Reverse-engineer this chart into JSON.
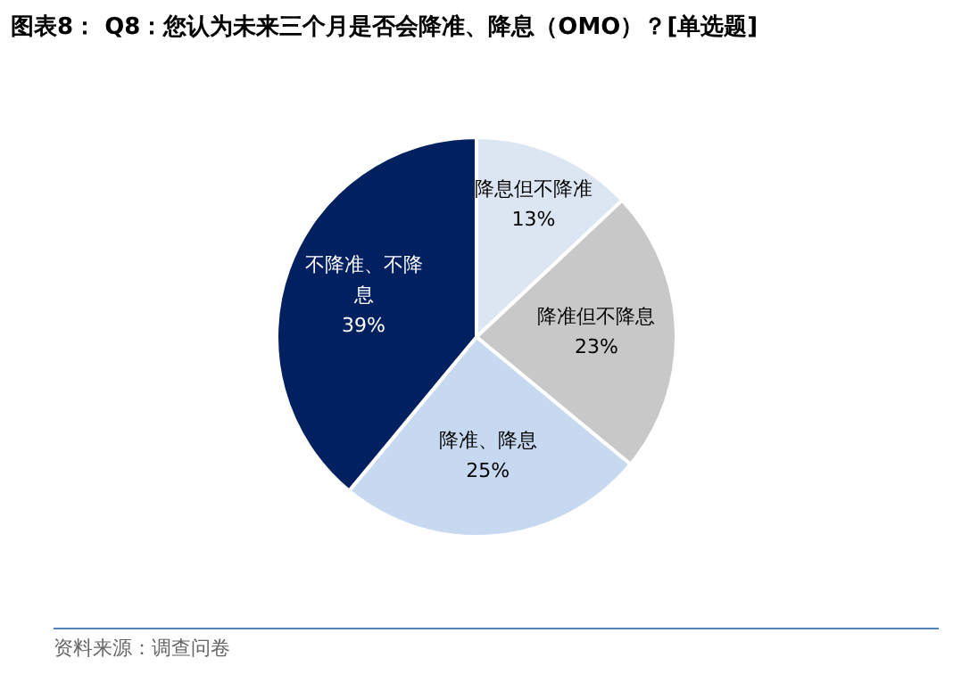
{
  "chart_data": {
    "type": "pie",
    "title": "图表8： Q8：您认为未来三个月是否会降准、降息（OMO）？[单选题]",
    "categories": [
      "降息但不降准",
      "降准但不降息",
      "降准、降息",
      "不降准、不降息"
    ],
    "values": [
      13,
      23,
      25,
      39
    ],
    "colors": [
      "#dce6f2",
      "#c8c8c8",
      "#c6d9f1",
      "#002060"
    ],
    "value_labels": [
      "13%",
      "23%",
      "25%",
      "39%"
    ],
    "legend": false,
    "annotations": [
      "资料来源：调查问卷"
    ]
  }
}
